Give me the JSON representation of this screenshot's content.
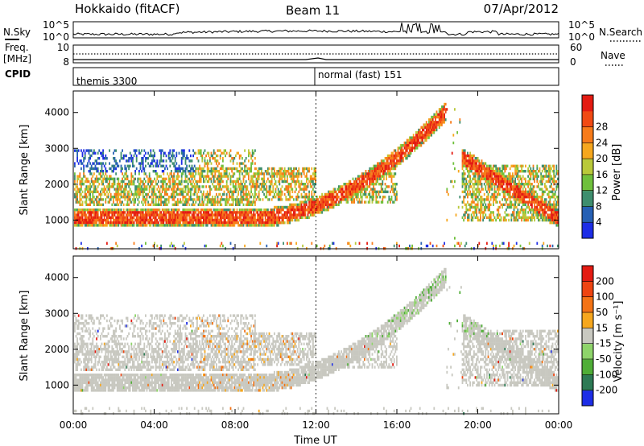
{
  "header": {
    "station": "Hokkaido (fitACF)",
    "beam": "Beam 11",
    "date": "07/Apr/2012"
  },
  "top_panels": {
    "nsky": {
      "label": "N.Sky",
      "left_ticks": [
        "10^5",
        "10^0"
      ],
      "right_ticks": [
        "10^5",
        "10^0"
      ],
      "right_label": "N.Search"
    },
    "freq": {
      "label_line1": "Freq.",
      "label_line2": "[MHz]",
      "left_ticks": [
        "10",
        "8"
      ],
      "right_ticks": [
        "60",
        "0"
      ],
      "right_label": "Nave"
    },
    "cpid": {
      "label": "CPID",
      "segments": [
        {
          "text": "themis 3300",
          "start_hour": 0
        },
        {
          "text": "normal (fast) 151",
          "start_hour": 12
        }
      ]
    }
  },
  "chart_data": [
    {
      "type": "heatmap",
      "name": "power",
      "ylabel": "Slant Range [km]",
      "yticks": [
        "1000",
        "2000",
        "3000",
        "4000"
      ],
      "ylim": [
        200,
        4600
      ],
      "xlim_hours": [
        0,
        24
      ],
      "colorbar_label": "Power [dB]",
      "colorbar_ticks": [
        "4",
        "8",
        "12",
        "16",
        "20",
        "24",
        "28"
      ],
      "colors": [
        "#1d2de6",
        "#2660b4",
        "#3e8e6e",
        "#6fc03c",
        "#b9c93a",
        "#f6a71e",
        "#f77b1a",
        "#f14a14",
        "#e41b12"
      ]
    },
    {
      "type": "heatmap",
      "name": "velocity",
      "ylabel": "Slant Range [km]",
      "yticks": [
        "1000",
        "2000",
        "3000",
        "4000"
      ],
      "ylim": [
        200,
        4600
      ],
      "xlim_hours": [
        0,
        24
      ],
      "xticks": [
        "00:00",
        "04:00",
        "08:00",
        "12:00",
        "16:00",
        "20:00",
        "00:00"
      ],
      "xlabel": "Time UT",
      "colorbar_label": "Velocity [m s⁻¹]",
      "colorbar_ticks": [
        "200",
        "100",
        "50",
        "15",
        "-15",
        "-50",
        "-100",
        "-200"
      ],
      "colors": [
        "#1d2de6",
        "#2d7a55",
        "#4fae37",
        "#8ed46a",
        "#c8c8c0",
        "#f6a71e",
        "#f37316",
        "#ee4412",
        "#e41b12"
      ]
    }
  ]
}
